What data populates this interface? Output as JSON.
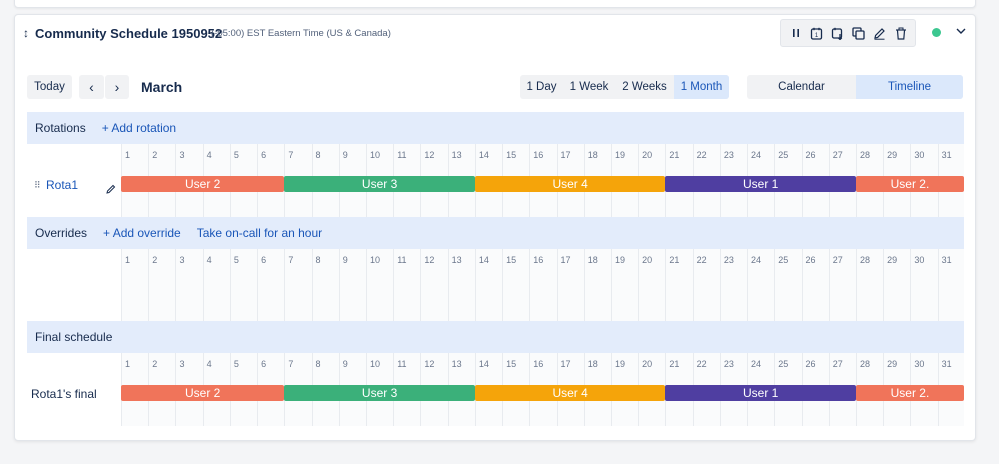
{
  "header": {
    "drag_glyph": "↕",
    "title": "Community Schedule 1950952",
    "timezone": "(-05:00) EST Eastern Time (US & Canada)",
    "toolbar_icons": [
      "pause-icon",
      "calendar-export-icon",
      "calendar-import-icon",
      "copy-icon",
      "edit-icon",
      "trash-icon"
    ],
    "status_color": "#3cc790"
  },
  "nav": {
    "today_label": "Today",
    "prev_glyph": "‹",
    "next_glyph": "›",
    "month": "March",
    "ranges": [
      "1 Day",
      "1 Week",
      "2 Weeks",
      "1 Month"
    ],
    "active_range": "1 Month",
    "views": [
      "Calendar",
      "Timeline"
    ],
    "active_view": "Timeline"
  },
  "rotations": {
    "title": "Rotations",
    "add_label": "+ Add rotation",
    "row_label": "Rota1",
    "grip_glyph": "⠿"
  },
  "overrides": {
    "title": "Overrides",
    "add_label": "+ Add override",
    "oncall_label": "Take on-call for an hour"
  },
  "final": {
    "title": "Final schedule",
    "row_label": "Rota1's final"
  },
  "days": [
    "1",
    "2",
    "3",
    "4",
    "5",
    "6",
    "7",
    "8",
    "9",
    "10",
    "11",
    "12",
    "13",
    "14",
    "15",
    "16",
    "17",
    "18",
    "19",
    "20",
    "21",
    "22",
    "23",
    "24",
    "25",
    "26",
    "27",
    "28",
    "29",
    "30",
    "31"
  ],
  "shifts": [
    {
      "user": "User 2",
      "start_day": 1,
      "end_day": 7,
      "color": "#f0745a"
    },
    {
      "user": "User 3",
      "start_day": 7,
      "end_day": 14,
      "color": "#3bb07a"
    },
    {
      "user": "User 4",
      "start_day": 14,
      "end_day": 21,
      "color": "#f5a40a"
    },
    {
      "user": "User 1",
      "start_day": 21,
      "end_day": 28,
      "color": "#4f3ea1"
    },
    {
      "user": "User 2.",
      "start_day": 28,
      "end_day": 32,
      "color": "#f0745a"
    }
  ]
}
